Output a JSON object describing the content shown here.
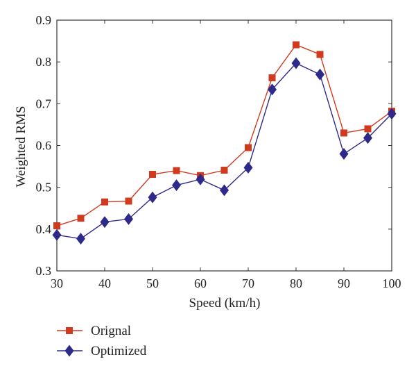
{
  "chart_data": {
    "type": "line",
    "xlabel": "Speed (km/h)",
    "ylabel": "Weighted RMS",
    "xlim": [
      30,
      100
    ],
    "ylim": [
      0.3,
      0.9
    ],
    "xticks": [
      "30",
      "40",
      "50",
      "60",
      "70",
      "80",
      "90",
      "100"
    ],
    "yticks": [
      "0.3",
      "0.4",
      "0.5",
      "0.6",
      "0.7",
      "0.8",
      "0.9"
    ],
    "x": [
      30,
      35,
      40,
      45,
      50,
      55,
      60,
      65,
      70,
      75,
      80,
      85,
      90,
      95,
      100
    ],
    "grid": false,
    "legend_position": "bottom-left, below plot",
    "series": [
      {
        "name": "Orignal",
        "color": "#d03a1e",
        "marker": "square",
        "values": [
          0.408,
          0.426,
          0.465,
          0.467,
          0.531,
          0.54,
          0.528,
          0.541,
          0.595,
          0.762,
          0.841,
          0.818,
          0.63,
          0.64,
          0.682
        ]
      },
      {
        "name": "Optimized",
        "color": "#2e2a8a",
        "marker": "diamond",
        "values": [
          0.386,
          0.377,
          0.417,
          0.424,
          0.476,
          0.505,
          0.519,
          0.493,
          0.547,
          0.734,
          0.797,
          0.77,
          0.58,
          0.618,
          0.676
        ]
      }
    ]
  }
}
